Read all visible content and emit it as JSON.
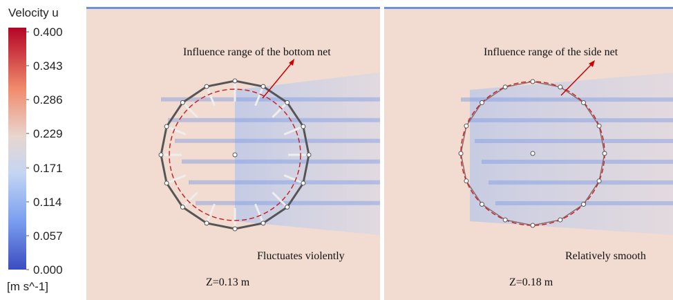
{
  "colorbar": {
    "title": "Velocity u",
    "unit": "[m s^-1]",
    "ticks": [
      {
        "value": 0.4,
        "label": "0.400"
      },
      {
        "value": 0.343,
        "label": "0.343"
      },
      {
        "value": 0.286,
        "label": "0.286"
      },
      {
        "value": 0.229,
        "label": "0.229"
      },
      {
        "value": 0.171,
        "label": "0.171"
      },
      {
        "value": 0.114,
        "label": "0.114"
      },
      {
        "value": 0.057,
        "label": "0.057"
      },
      {
        "value": 0,
        "label": "0.000"
      }
    ]
  },
  "panels": [
    {
      "annotation": "Influence range of the bottom net",
      "note": "Fluctuates violently",
      "depth": "Z=0.13 m"
    },
    {
      "annotation": "Influence range of the side net",
      "note": "Relatively smooth",
      "depth": "Z=0.18 m"
    }
  ]
}
